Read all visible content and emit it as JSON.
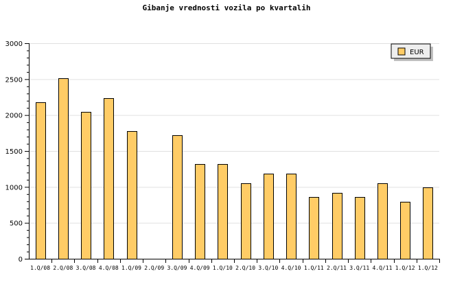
{
  "chart_data": {
    "type": "bar",
    "title": "Gibanje vrednosti vozila po kvartalih",
    "xlabel": "",
    "ylabel": "",
    "categories": [
      "1.Q/08",
      "2.Q/08",
      "3.Q/08",
      "4.Q/08",
      "1.Q/09",
      "2.Q/09",
      "3.Q/09",
      "4.Q/09",
      "1.Q/10",
      "2.Q/10",
      "3.Q/10",
      "4.Q/10",
      "1.Q/11",
      "2.Q/11",
      "3.Q/11",
      "4.Q/11",
      "1.Q/12",
      "1.Q/12"
    ],
    "series": [
      {
        "name": "EUR",
        "color": "#ffcc66",
        "values": [
          2180,
          2510,
          2040,
          2240,
          1780,
          0,
          1720,
          1320,
          1320,
          1050,
          1180,
          1180,
          860,
          920,
          860,
          1050,
          790,
          990
        ]
      }
    ],
    "ylim": [
      0,
      3000
    ],
    "yticks": [
      0,
      500,
      1000,
      1500,
      2000,
      2500,
      3000
    ],
    "grid": true,
    "legend": "top-right"
  }
}
